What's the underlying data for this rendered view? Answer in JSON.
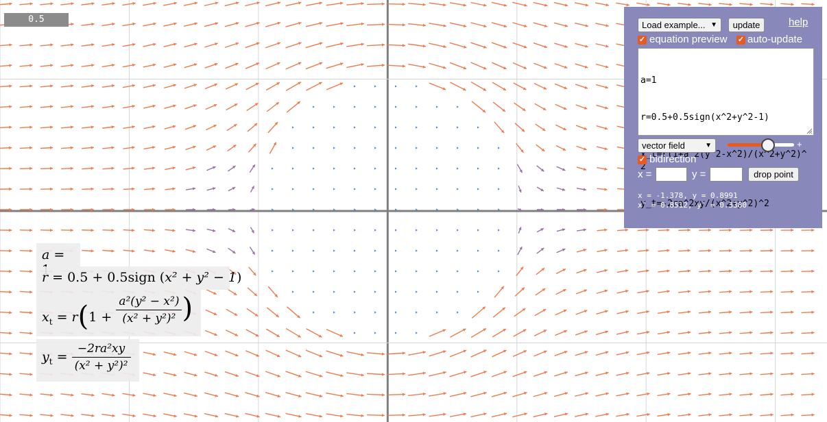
{
  "zoom": {
    "value": "0.5"
  },
  "controls": {
    "example_select": "Load example...",
    "update_button": "update",
    "help_link": "help",
    "equation_preview": {
      "label": "equation preview",
      "checked": true
    },
    "auto_update": {
      "label": "auto-update",
      "checked": true
    },
    "equation_lines": [
      "a=1",
      "r=0.5+0.5sign(x^2+y^2-1)",
      "x_t=r(1+a^2(y^2-x^2)/(x^2+y^2)^2",
      "y_t=-2ra^2xy/(x^2+y^2)^2"
    ],
    "mode_select": "vector field",
    "slider": {
      "level": 0.62,
      "plus": "+"
    },
    "bidirection": {
      "label": "bidirection",
      "checked": true
    },
    "x_label": "x =",
    "y_label": "y =",
    "x_input": "",
    "y_input": "",
    "drop_point_button": "drop point",
    "readout_line1": "x = -1.378, y = 0.8991",
    "readout_line2": "x' = 0.8512, y' = 0.3380"
  },
  "equations": {
    "a_line": {
      "lhs": "a",
      "rhs": "1"
    },
    "r_line": {
      "lhs": "r",
      "rhs_pre": "0.5 + 0.5sign",
      "arg": "x² + y² − 1"
    },
    "xt_line": {
      "lhs": "x",
      "sub": "t",
      "pre": "r",
      "one": "1 +",
      "num": "a²(y² − x²)",
      "den": "(x² + y²)²"
    },
    "yt_line": {
      "lhs": "y",
      "sub": "t",
      "num": "−2ra²xy",
      "den": "(x² + y²)²"
    }
  },
  "field": {
    "params": {
      "a": 1
    },
    "x_range": [
      -3,
      3.4
    ],
    "y_range": [
      -1.6,
      1.6
    ],
    "colors": {
      "fast": "#ef7b4d",
      "mid": "#9a70a8",
      "slow": "#4e8ae6",
      "axis": "#7f7f7f",
      "grid": "#d6d6d6"
    }
  }
}
